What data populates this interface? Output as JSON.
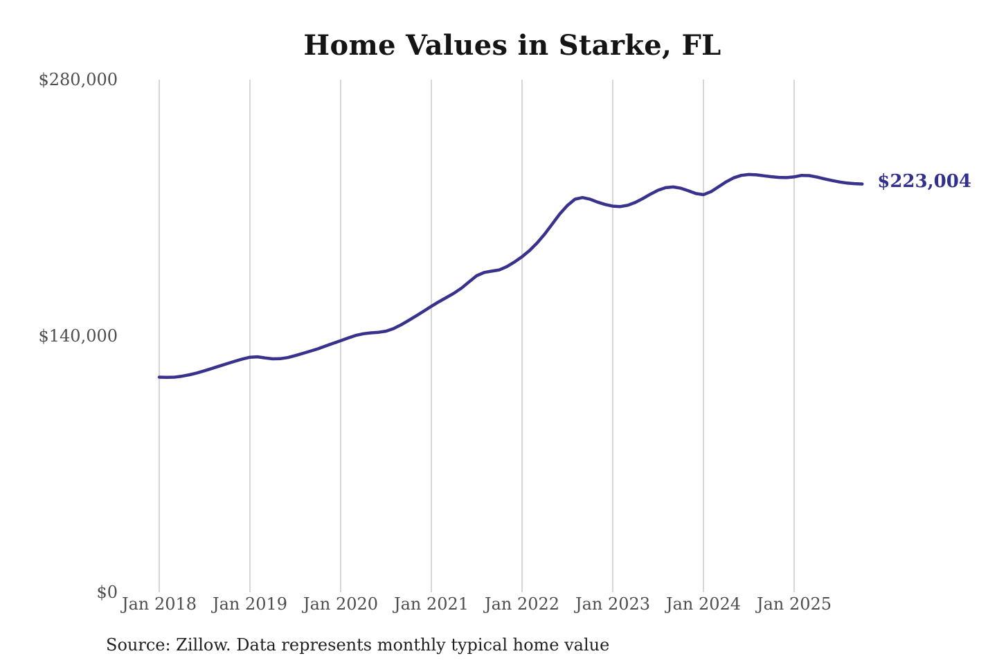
{
  "chart": {
    "title": "Home Values in Starke, FL",
    "source_note": "Source: Zillow. Data represents monthly typical home value",
    "end_value_label": "$223,004",
    "colors": {
      "line": "#38328c",
      "end_label": "#32308f",
      "gridline": "#cccccc",
      "axis_text": "#4d4d4d",
      "title_text": "#141414",
      "source_text": "#1f1f1f",
      "background": "#ffffff"
    }
  },
  "chart_data": {
    "type": "line",
    "title": "Home Values in Starke, FL",
    "xlabel": "",
    "ylabel": "",
    "x_unit": "month",
    "x_start": "2018-01",
    "x_end": "2025-10",
    "ylim": [
      0,
      280000
    ],
    "grid": "vertical-only",
    "legend_position": "none",
    "y_ticks": [
      {
        "label": "$0",
        "value": 0
      },
      {
        "label": "$140,000",
        "value": 140000
      },
      {
        "label": "$280,000",
        "value": 280000
      }
    ],
    "x_ticks": [
      {
        "label": "Jan 2018",
        "month_index": 0
      },
      {
        "label": "Jan 2019",
        "month_index": 12
      },
      {
        "label": "Jan 2020",
        "month_index": 24
      },
      {
        "label": "Jan 2021",
        "month_index": 36
      },
      {
        "label": "Jan 2022",
        "month_index": 48
      },
      {
        "label": "Jan 2023",
        "month_index": 60
      },
      {
        "label": "Jan 2024",
        "month_index": 72
      },
      {
        "label": "Jan 2025",
        "month_index": 84
      }
    ],
    "annotation": {
      "text": "$223,004",
      "value": 223004,
      "position": "line-end"
    },
    "series": [
      {
        "name": "Monthly typical home value",
        "start_month": "2018-01",
        "frequency": "monthly",
        "values": [
          117500,
          117400,
          117500,
          118000,
          118800,
          119800,
          121000,
          122300,
          123600,
          124900,
          126200,
          127400,
          128400,
          128600,
          128000,
          127500,
          127600,
          128200,
          129300,
          130500,
          131700,
          133000,
          134500,
          136000,
          137400,
          138900,
          140300,
          141200,
          141700,
          142000,
          142600,
          144000,
          146100,
          148500,
          151000,
          153600,
          156200,
          158700,
          161000,
          163400,
          166200,
          169600,
          172900,
          174700,
          175400,
          176100,
          177900,
          180400,
          183300,
          186700,
          190800,
          195700,
          201200,
          206700,
          211300,
          214700,
          215600,
          214700,
          213100,
          211800,
          210900,
          210700,
          211400,
          213000,
          215100,
          217500,
          219600,
          221000,
          221400,
          220700,
          219300,
          217800,
          217200,
          218800,
          221500,
          224200,
          226400,
          227700,
          228200,
          228000,
          227500,
          227000,
          226600,
          226500,
          226900,
          227700,
          227600,
          226800,
          225800,
          224900,
          224100,
          223500,
          223200,
          223004
        ]
      }
    ]
  }
}
